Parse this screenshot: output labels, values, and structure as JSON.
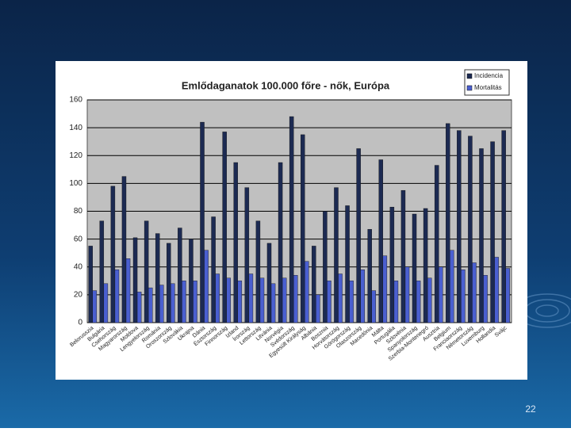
{
  "chart_data": {
    "type": "bar",
    "title": "Emlődaganatok 100.000 főre - nők, Európa",
    "categories": [
      "Belorusszia",
      "Bulgária",
      "Csehország",
      "Magyarország",
      "Moldova",
      "Lengyelország",
      "Románia",
      "Oroszország",
      "Szlovákia",
      "Ukrajna",
      "Dánia",
      "Észtország",
      "Finnország",
      "Izland",
      "Írország",
      "Lettország",
      "Litvánia",
      "Norvégia",
      "Svédország",
      "Egyesült Királyság",
      "Albánia",
      "Bosznia",
      "Horvátország",
      "Görögország",
      "Olaszország",
      "Macedónia",
      "Málta",
      "Portugália",
      "Szlovénia",
      "Spanyolország",
      "Szerbia-Montenegró",
      "Ausztria",
      "Belgium",
      "Franciaország",
      "Németország",
      "Luxemburg",
      "Hollandia",
      "Svájc"
    ],
    "series": [
      {
        "name": "Incidencia",
        "color": "#1c2a52",
        "values": [
          55,
          73,
          98,
          105,
          61,
          73,
          64,
          57,
          68,
          60,
          144,
          76,
          137,
          115,
          97,
          73,
          57,
          115,
          148,
          135,
          55,
          80,
          97,
          84,
          125,
          67,
          117,
          83,
          95,
          78,
          82,
          113,
          143,
          138,
          134,
          125,
          130,
          138
        ]
      },
      {
        "name": "Mortalitás",
        "color": "#4a5fd0",
        "values": [
          23,
          28,
          38,
          46,
          22,
          25,
          27,
          28,
          30,
          30,
          52,
          35,
          32,
          30,
          35,
          32,
          28,
          32,
          34,
          44,
          20,
          30,
          35,
          30,
          38,
          23,
          48,
          30,
          40,
          30,
          32,
          40,
          52,
          38,
          43,
          34,
          47,
          39
        ]
      }
    ],
    "ylim": [
      0,
      160
    ],
    "yticks": [
      0,
      20,
      40,
      60,
      80,
      100,
      120,
      140,
      160
    ],
    "grid": true,
    "legend": "top-right"
  },
  "page_number": "22"
}
